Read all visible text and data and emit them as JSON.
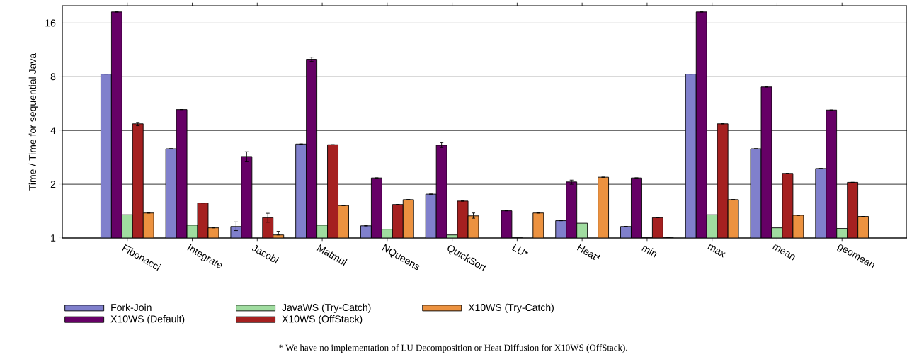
{
  "chart_data": {
    "type": "bar",
    "ylabel": "Time / Time for sequential Java",
    "log": "y",
    "ylim": [
      1,
      20
    ],
    "yticks": [
      1,
      2,
      4,
      8,
      16
    ],
    "grid": "y",
    "legend": "bottom",
    "categories": [
      "Fibonacci",
      "Integrate",
      "Jacobi",
      "Matmul",
      "NQueens",
      "QuickSort",
      "LU*",
      "Heat*",
      "min",
      "max",
      "mean",
      "geomean"
    ],
    "series": [
      {
        "name": "Fork-Join",
        "color": "#8080cc",
        "values": [
          8.28,
          3.16,
          1.16,
          3.36,
          1.17,
          1.76,
          null,
          1.25,
          1.16,
          8.28,
          3.16,
          2.45
        ],
        "errors": [
          null,
          null,
          [
            1.1,
            1.23
          ],
          null,
          null,
          null,
          null,
          null,
          null,
          null,
          null,
          null
        ]
      },
      {
        "name": "X10WS (Default)",
        "color": "#660066",
        "values": [
          18.45,
          5.24,
          2.86,
          10.03,
          2.17,
          3.31,
          1.42,
          2.06,
          2.17,
          18.45,
          7.01,
          5.21
        ],
        "errors": [
          null,
          null,
          [
            2.69,
            3.04
          ],
          [
            9.75,
            10.3
          ],
          null,
          [
            3.21,
            3.42
          ],
          null,
          [
            2.0,
            2.11
          ],
          null,
          null,
          null,
          null
        ]
      },
      {
        "name": "JavaWS (Try-Catch)",
        "color": "#a0dca0",
        "values": [
          1.35,
          1.18,
          null,
          1.18,
          1.12,
          1.04,
          1.0,
          1.21,
          1.0,
          1.35,
          1.14,
          1.13
        ]
      },
      {
        "name": "X10WS (OffStack)",
        "color": "#a52020",
        "values": [
          4.36,
          1.57,
          1.3,
          3.33,
          1.54,
          1.61,
          null,
          null,
          1.3,
          4.36,
          2.3,
          2.05
        ],
        "errors": [
          [
            4.25,
            4.44
          ],
          null,
          [
            1.225,
            1.375
          ],
          null,
          null,
          null,
          null,
          null,
          null,
          null,
          null,
          null
        ]
      },
      {
        "name": "X10WS (Try-Catch)",
        "color": "#ec9240",
        "values": [
          1.38,
          1.14,
          1.04,
          1.52,
          1.64,
          1.33,
          1.38,
          2.19,
          1.0,
          1.64,
          1.34,
          1.32
        ],
        "errors": [
          null,
          null,
          [
            1.04,
            1.09
          ],
          null,
          null,
          [
            1.29,
            1.38
          ],
          null,
          null,
          null,
          null,
          null,
          null
        ]
      }
    ],
    "annotations": [
      "* We have no implementation of LU Decomposition or Heat Diffusion for X10WS (OffStack)."
    ]
  }
}
